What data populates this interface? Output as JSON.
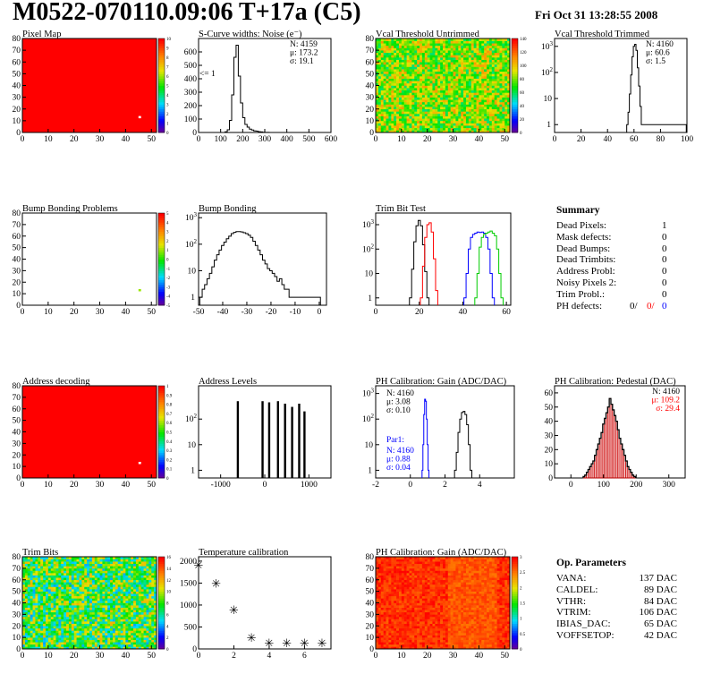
{
  "header": {
    "title": "M0522-070110.09:06 T+17a (C5)",
    "date": "Fri Oct 31 13:28:55 2008"
  },
  "chart_data": [
    {
      "id": "pixel-map",
      "type": "heatmap",
      "title": "Pixel Map",
      "xlim": [
        0,
        52
      ],
      "ylim": [
        0,
        80
      ],
      "xticks": [
        0,
        10,
        20,
        30,
        40,
        50
      ],
      "yticks": [
        0,
        10,
        20,
        30,
        40,
        50,
        60,
        70,
        80
      ],
      "zlim": [
        0,
        10
      ],
      "zticks": [
        0,
        1,
        2,
        3,
        4,
        5,
        6,
        7,
        8,
        9,
        10
      ],
      "uniform_value": 10,
      "marked_cells": [
        {
          "x": 45,
          "y": 13,
          "value": 0
        }
      ]
    },
    {
      "id": "scurve-noise",
      "type": "histogram",
      "title": "S-Curve widths: Noise (e⁻)",
      "xlim": [
        0,
        600
      ],
      "xticks": [
        0,
        100,
        200,
        300,
        400,
        500,
        600
      ],
      "ylim": [
        0,
        700
      ],
      "yticks": [
        0,
        100,
        200,
        300,
        400,
        500,
        600
      ],
      "x": [
        125,
        135,
        145,
        155,
        165,
        175,
        185,
        195,
        205,
        215,
        225,
        235,
        245,
        255,
        265,
        275,
        285,
        295,
        305,
        315
      ],
      "values": [
        5,
        20,
        90,
        280,
        560,
        650,
        420,
        220,
        110,
        60,
        40,
        25,
        18,
        12,
        10,
        6,
        4,
        2,
        1,
        1
      ],
      "annotation": "<= 1",
      "stats": [
        "N: 4159",
        "μ: 173.2",
        "σ: 19.1"
      ]
    },
    {
      "id": "vcal-untrimmed",
      "type": "heatmap",
      "title": "Vcal Threshold Untrimmed",
      "xlim": [
        0,
        52
      ],
      "ylim": [
        0,
        80
      ],
      "xticks": [
        0,
        10,
        20,
        30,
        40,
        50
      ],
      "yticks": [
        0,
        10,
        20,
        30,
        40,
        50,
        60,
        70,
        80
      ],
      "zlim": [
        0,
        140
      ],
      "zticks": [
        0,
        20,
        40,
        60,
        80,
        100,
        120,
        140
      ],
      "value_range": [
        55,
        110
      ]
    },
    {
      "id": "vcal-trimmed",
      "type": "histogram",
      "title": "Vcal Threshold Trimmed",
      "log_y": true,
      "xlim": [
        0,
        100
      ],
      "xticks": [
        0,
        20,
        40,
        60,
        80,
        100
      ],
      "ylim": [
        0.5,
        2000
      ],
      "yticks": [
        1,
        10,
        100,
        1000
      ],
      "x": [
        55,
        56,
        57,
        58,
        59,
        60,
        61,
        62,
        63,
        64,
        65,
        66,
        99
      ],
      "values": [
        1,
        3,
        15,
        80,
        400,
        1000,
        1200,
        700,
        150,
        30,
        5,
        1,
        1
      ],
      "stats": [
        "N: 4160",
        "μ: 60.6",
        "σ: 1.5"
      ]
    },
    {
      "id": "bump-problems",
      "type": "heatmap",
      "title": "Bump Bonding Problems",
      "xlim": [
        0,
        52
      ],
      "ylim": [
        0,
        80
      ],
      "xticks": [
        0,
        10,
        20,
        30,
        40,
        50
      ],
      "yticks": [
        0,
        10,
        20,
        30,
        40,
        50,
        60,
        70,
        80
      ],
      "zlim": [
        -5,
        5
      ],
      "zticks": [
        -5,
        -4,
        -3,
        -2,
        -1,
        0,
        1,
        2,
        3,
        4,
        5
      ],
      "marked_cells": [
        {
          "x": 45,
          "y": 13,
          "value": 1
        }
      ]
    },
    {
      "id": "bump-bonding",
      "type": "histogram",
      "title": "Bump Bonding",
      "log_y": true,
      "xlim": [
        -50,
        3
      ],
      "xticks": [
        -50,
        -40,
        -30,
        -20,
        -10,
        0
      ],
      "ylim": [
        0.5,
        1500
      ],
      "yticks": [
        1,
        10,
        100,
        1000
      ],
      "x": [
        -49,
        -48,
        -47,
        -46,
        -45,
        -44,
        -43,
        -42,
        -41,
        -40,
        -39,
        -38,
        -37,
        -36,
        -35,
        -34,
        -33,
        -32,
        -31,
        -30,
        -29,
        -28,
        -27,
        -26,
        -25,
        -24,
        -23,
        -22,
        -21,
        -20,
        -19,
        -18,
        -17,
        -16,
        -15,
        -14,
        -13,
        -12,
        -11,
        -9,
        -8,
        0
      ],
      "values": [
        1,
        2,
        3,
        5,
        8,
        14,
        25,
        40,
        60,
        90,
        120,
        160,
        200,
        250,
        280,
        300,
        300,
        290,
        270,
        250,
        220,
        180,
        130,
        90,
        60,
        40,
        25,
        18,
        12,
        10,
        8,
        6,
        4,
        5,
        3,
        2,
        2,
        1,
        1,
        1,
        1,
        1
      ]
    },
    {
      "id": "trim-bit-test",
      "type": "histogram",
      "title": "Trim Bit Test",
      "log_y": true,
      "xlim": [
        0,
        62
      ],
      "xticks": [
        0,
        20,
        40,
        60
      ],
      "ylim": [
        0.5,
        3000
      ],
      "yticks": [
        1,
        10,
        100,
        1000
      ],
      "series": [
        {
          "color": "#000000",
          "x": [
            16,
            17,
            18,
            19,
            20,
            21,
            22,
            23,
            24
          ],
          "values": [
            1,
            15,
            200,
            900,
            1500,
            900,
            150,
            12,
            1
          ]
        },
        {
          "color": "#ff0000",
          "x": [
            21,
            22,
            23,
            24,
            25,
            26,
            27,
            28
          ],
          "values": [
            1,
            20,
            300,
            1000,
            1200,
            500,
            40,
            2
          ]
        },
        {
          "color": "#0000ff",
          "x": [
            41,
            42,
            43,
            44,
            45,
            46,
            47,
            48,
            49,
            50,
            51,
            52,
            53,
            54
          ],
          "values": [
            1,
            10,
            100,
            300,
            400,
            450,
            500,
            480,
            500,
            450,
            300,
            100,
            10,
            1
          ]
        },
        {
          "color": "#00cc00",
          "x": [
            46,
            47,
            48,
            49,
            50,
            51,
            52,
            53,
            54,
            55,
            56,
            57,
            58
          ],
          "values": [
            1,
            10,
            120,
            300,
            400,
            450,
            500,
            550,
            450,
            350,
            100,
            10,
            1
          ]
        }
      ]
    },
    {
      "id": "address-decoding",
      "type": "heatmap",
      "title": "Address decoding",
      "xlim": [
        0,
        52
      ],
      "ylim": [
        0,
        80
      ],
      "xticks": [
        0,
        10,
        20,
        30,
        40,
        50
      ],
      "yticks": [
        0,
        10,
        20,
        30,
        40,
        50,
        60,
        70,
        80
      ],
      "zlim": [
        0,
        1
      ],
      "zticks": [
        0,
        0.1,
        0.2,
        0.3,
        0.4,
        0.5,
        0.6,
        0.7,
        0.8,
        0.9,
        1
      ],
      "uniform_value": 1,
      "marked_cells": [
        {
          "x": 45,
          "y": 13,
          "value": 0
        }
      ]
    },
    {
      "id": "address-levels",
      "type": "histogram",
      "title": "Address Levels",
      "log_y": true,
      "xlim": [
        -1500,
        1500
      ],
      "xticks": [
        -1000,
        0,
        1000
      ],
      "ylim": [
        0.5,
        2000
      ],
      "yticks": [
        1,
        10,
        100
      ],
      "x": [
        -610,
        -50,
        100,
        300,
        460,
        620,
        780,
        900
      ],
      "values": [
        500,
        500,
        450,
        500,
        400,
        300,
        400,
        200
      ]
    },
    {
      "id": "ph-gain",
      "type": "histogram",
      "title": "PH Calibration: Gain (ADC/DAC)",
      "log_y": true,
      "xlim": [
        -2,
        6
      ],
      "xticks": [
        -2,
        0,
        2,
        4
      ],
      "ylim": [
        0.5,
        2000
      ],
      "yticks": [
        1,
        10,
        100,
        1000
      ],
      "series": [
        {
          "color": "#000000",
          "x": [
            2.6,
            2.7,
            2.8,
            2.9,
            3.0,
            3.1,
            3.2,
            3.3,
            3.4,
            3.5
          ],
          "values": [
            1,
            5,
            30,
            100,
            180,
            200,
            150,
            60,
            10,
            1
          ]
        },
        {
          "color": "#0000ff",
          "x": [
            0.7,
            0.75,
            0.8,
            0.85,
            0.9,
            0.95,
            1.0,
            1.05
          ],
          "values": [
            1,
            10,
            150,
            600,
            500,
            100,
            10,
            1
          ]
        }
      ],
      "stats": [
        "N: 4160",
        "μ: 3.08",
        "σ: 0.10"
      ],
      "stats2_label": "Par1:",
      "stats2": [
        "N: 4160",
        "μ: 0.88",
        "σ: 0.04"
      ]
    },
    {
      "id": "ph-pedestal",
      "type": "histogram",
      "title": "PH Calibration: Pedestal (DAC)",
      "xlim": [
        -50,
        350
      ],
      "xticks": [
        0,
        100,
        200,
        300
      ],
      "ylim": [
        0,
        65
      ],
      "yticks": [
        0,
        10,
        20,
        30,
        40,
        50,
        60
      ],
      "x": [
        40,
        45,
        50,
        55,
        60,
        65,
        70,
        75,
        80,
        85,
        90,
        95,
        100,
        105,
        110,
        115,
        120,
        125,
        130,
        135,
        140,
        145,
        150,
        155,
        160,
        165,
        170,
        175,
        180,
        185,
        190,
        195
      ],
      "values": [
        1,
        2,
        4,
        6,
        8,
        10,
        12,
        16,
        20,
        24,
        28,
        32,
        38,
        42,
        46,
        50,
        56,
        52,
        48,
        44,
        40,
        34,
        28,
        24,
        20,
        16,
        12,
        8,
        6,
        4,
        2,
        1
      ],
      "stats": [
        "N: 4160",
        "μ: 109.2",
        "σ: 29.4"
      ]
    },
    {
      "id": "trim-bits",
      "type": "heatmap",
      "title": "Trim Bits",
      "xlim": [
        0,
        52
      ],
      "ylim": [
        0,
        80
      ],
      "xticks": [
        0,
        10,
        20,
        30,
        40,
        50
      ],
      "yticks": [
        0,
        10,
        20,
        30,
        40,
        50,
        60,
        70,
        80
      ],
      "zlim": [
        0,
        16
      ],
      "zticks": [
        0,
        2,
        4,
        6,
        8,
        10,
        12,
        14,
        16
      ],
      "value_range": [
        4,
        12
      ]
    },
    {
      "id": "temperature-calibration",
      "type": "scatter",
      "title": "Temperature calibration",
      "xlim": [
        0,
        7.5
      ],
      "xticks": [
        0,
        2,
        4,
        6
      ],
      "ylim": [
        0,
        2100
      ],
      "yticks": [
        0,
        500,
        1000,
        1500,
        2000
      ],
      "x": [
        0,
        1,
        2,
        3,
        4,
        5,
        6,
        7
      ],
      "y": [
        1900,
        1480,
        880,
        240,
        120,
        120,
        120,
        120
      ]
    },
    {
      "id": "ph-gain-map",
      "type": "heatmap",
      "title": "PH Calibration: Gain (ADC/DAC)",
      "xlim": [
        0,
        52
      ],
      "ylim": [
        0,
        80
      ],
      "xticks": [
        0,
        10,
        20,
        30,
        40,
        50
      ],
      "yticks": [
        0,
        10,
        20,
        30,
        40,
        50,
        60,
        70,
        80
      ],
      "zlim": [
        0,
        3
      ],
      "zticks": [
        0,
        0.5,
        1,
        1.5,
        2,
        2.5,
        3
      ],
      "value_range": [
        2.6,
        3.0
      ]
    }
  ],
  "summary": {
    "heading": "Summary",
    "rows": [
      {
        "label": "Dead Pixels:",
        "value": "1"
      },
      {
        "label": "Mask defects:",
        "value": "0"
      },
      {
        "label": "Dead Bumps:",
        "value": "0"
      },
      {
        "label": "Dead Trimbits:",
        "value": "0"
      },
      {
        "label": "Address Probl:",
        "value": "0"
      },
      {
        "label": "Noisy Pixels 2:",
        "value": "0"
      },
      {
        "label": "Trim Probl.:",
        "value": "0"
      }
    ],
    "ph_defects": {
      "label": "PH defects:",
      "v1": "0/",
      "v2": "0/",
      "v3": "0",
      "c2": "#ff0000",
      "c3": "#0000ff"
    }
  },
  "op_parameters": {
    "heading": "Op. Parameters",
    "rows": [
      {
        "label": "VANA:",
        "value": "137 DAC"
      },
      {
        "label": "CALDEL:",
        "value": "89 DAC"
      },
      {
        "label": "VTHR:",
        "value": "84 DAC"
      },
      {
        "label": "VTRIM:",
        "value": "106 DAC"
      },
      {
        "label": "IBIAS_DAC:",
        "value": "65 DAC"
      },
      {
        "label": "VOFFSETOP:",
        "value": "42 DAC"
      }
    ]
  }
}
